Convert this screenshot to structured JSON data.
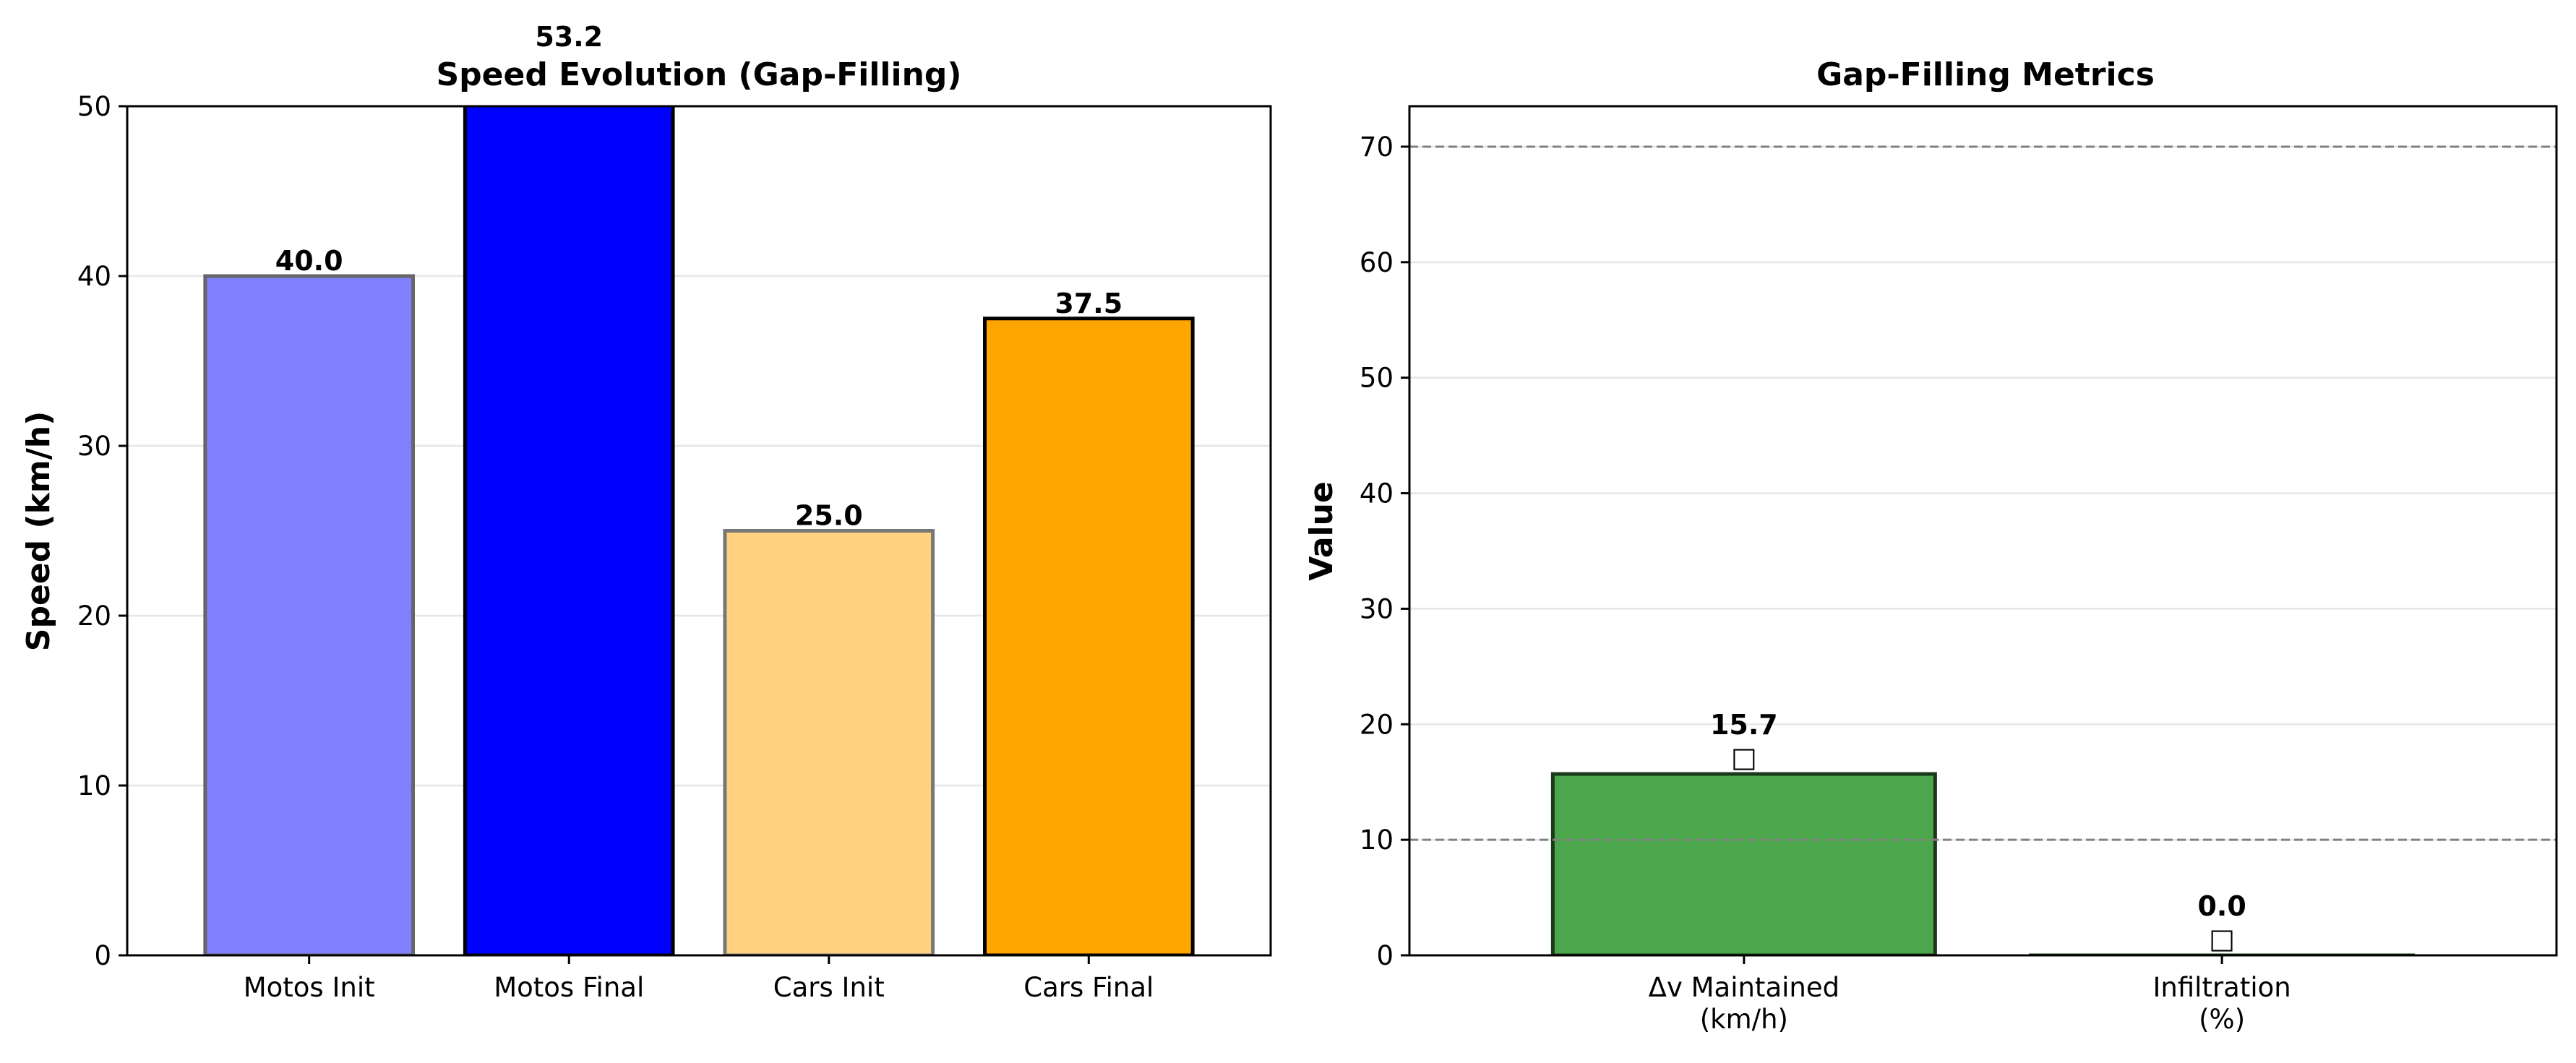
{
  "chart_data": [
    {
      "type": "bar",
      "title": "Speed Evolution (Gap-Filling)",
      "xlabel": "",
      "ylabel": "Speed (km/h)",
      "ylim": [
        0,
        50
      ],
      "yticks": [
        0,
        10,
        20,
        30,
        40,
        50
      ],
      "grid": "y",
      "categories": [
        "Motos Init",
        "Motos Final",
        "Cars Init",
        "Cars Final"
      ],
      "values": [
        40.0,
        53.2,
        25.0,
        37.5
      ],
      "value_labels": [
        "40.0",
        "53.2",
        "25.0",
        "37.5"
      ],
      "colors": [
        "#8080ff",
        "#0000ff",
        "#ffd280",
        "#ffa500"
      ],
      "edge_colors": [
        "#666666",
        "#000000",
        "#777777",
        "#000000"
      ]
    },
    {
      "type": "bar",
      "title": "Gap-Filling Metrics",
      "xlabel": "",
      "ylabel": "Value",
      "ylim": [
        0,
        73.5
      ],
      "yticks": [
        0,
        10,
        20,
        30,
        40,
        50,
        60,
        70
      ],
      "grid": "y",
      "categories": [
        [
          "Δv Maintained",
          "(km/h)"
        ],
        [
          "Infiltration",
          "(%)"
        ]
      ],
      "values": [
        15.7,
        0.0
      ],
      "value_labels": [
        "15.7",
        "0.0"
      ],
      "status_glyphs": [
        "□",
        "□"
      ],
      "colors": [
        "#4ca64c",
        "#4ca64c"
      ],
      "edge_colors": [
        "#1a3a1a",
        "#1a3a1a"
      ],
      "reference_lines": [
        10,
        70
      ]
    }
  ]
}
